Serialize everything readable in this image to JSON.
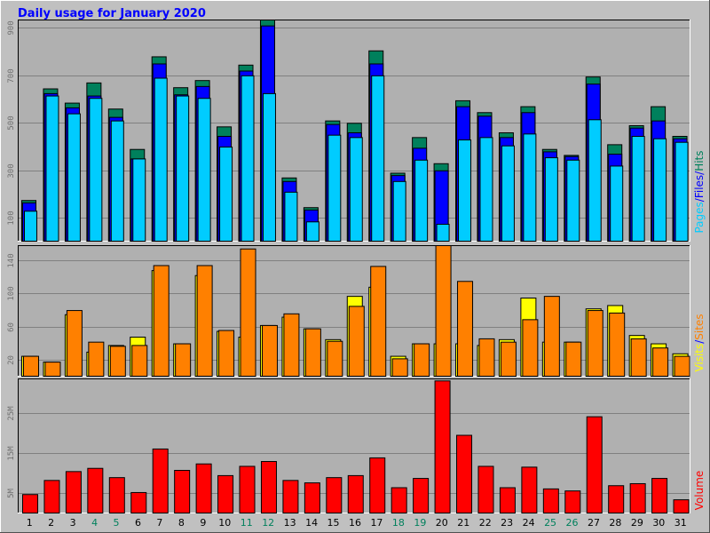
{
  "colors": {
    "background": "#c0c0c0",
    "plot_background": "#b0b0b0",
    "hits": "#00ccff",
    "files": "#0000ff",
    "pages": "#00805c",
    "visits": "#ffff00",
    "sites": "#ff8000",
    "volume": "#ff0000",
    "weekday_label": "#000000",
    "weekend_label": "#00805c",
    "separator": "#0000ff"
  },
  "chart_data": {
    "type": "bar",
    "title": "Daily usage for January 2020",
    "categories": [
      "1",
      "2",
      "3",
      "4",
      "5",
      "6",
      "7",
      "8",
      "9",
      "10",
      "11",
      "12",
      "13",
      "14",
      "15",
      "16",
      "17",
      "18",
      "19",
      "20",
      "21",
      "22",
      "23",
      "24",
      "25",
      "26",
      "27",
      "28",
      "29",
      "30",
      "31"
    ],
    "weekend_days": [
      "4",
      "5",
      "11",
      "12",
      "18",
      "19",
      "25",
      "26"
    ],
    "panels": [
      {
        "id": "top",
        "legend": [
          "Pages",
          "Files",
          "Hits"
        ],
        "ticks": [
          "100",
          "300",
          "500",
          "700",
          "900"
        ],
        "tick_values": [
          100,
          300,
          500,
          700,
          900
        ],
        "ylim": [
          0,
          935
        ],
        "series": [
          {
            "name": "Pages",
            "values": [
              175,
              645,
              585,
              670,
              560,
              390,
              780,
              650,
              680,
              485,
              745,
              935,
              270,
              145,
              510,
              500,
              805,
              290,
              440,
              330,
              595,
              545,
              460,
              570,
              390,
              365,
              695,
              410,
              490,
              570,
              445
            ]
          },
          {
            "name": "Files",
            "values": [
              165,
              625,
              565,
              615,
              525,
              350,
              750,
              620,
              655,
              445,
              720,
              910,
              255,
              135,
              495,
              460,
              750,
              280,
              395,
              300,
              570,
              530,
              440,
              545,
              380,
              360,
              665,
              370,
              480,
              510,
              435
            ]
          },
          {
            "name": "Hits",
            "values": [
              130,
              615,
              540,
              605,
              510,
              350,
              690,
              615,
              605,
              400,
              700,
              625,
              210,
              85,
              450,
              440,
              700,
              255,
              345,
              75,
              430,
              440,
              405,
              455,
              355,
              345,
              515,
              320,
              445,
              435,
              420
            ]
          }
        ]
      },
      {
        "id": "middle",
        "legend": [
          "Visits",
          "Sites"
        ],
        "ticks": [
          "20",
          "60",
          "100",
          "140"
        ],
        "tick_values": [
          20,
          60,
          100,
          140
        ],
        "ylim": [
          0,
          158
        ],
        "series": [
          {
            "name": "Visits",
            "values": [
              25,
              18,
              75,
              30,
              38,
              48,
              128,
              40,
              122,
              55,
              48,
              62,
              72,
              58,
              45,
              97,
              108,
              25,
              40,
              40,
              40,
              38,
              45,
              95,
              42,
              42,
              82,
              86,
              50,
              40,
              28
            ]
          },
          {
            "name": "Sites",
            "values": [
              25,
              18,
              80,
              42,
              37,
              38,
              134,
              40,
              134,
              56,
              154,
              62,
              76,
              58,
              43,
              85,
              133,
              22,
              40,
              158,
              115,
              46,
              42,
              69,
              97,
              42,
              80,
              77,
              46,
              35,
              25
            ]
          }
        ]
      },
      {
        "id": "bottom",
        "legend": [
          "Volume"
        ],
        "ticks": [
          "5M",
          "15M",
          "25M"
        ],
        "tick_values": [
          5,
          15,
          25
        ],
        "ylim": [
          0,
          33.5
        ],
        "unit": "MB",
        "series": [
          {
            "name": "Volume",
            "values": [
              4.8,
              8.3,
              10.5,
              11.3,
              9.0,
              5.3,
              16.1,
              10.8,
              12.4,
              9.5,
              11.8,
              13.0,
              8.3,
              7.7,
              9.0,
              9.5,
              13.9,
              6.5,
              8.8,
              33.0,
              19.5,
              11.8,
              6.5,
              11.6,
              6.2,
              5.7,
              24.1,
              7.0,
              7.5,
              8.8,
              3.5
            ]
          }
        ]
      }
    ]
  }
}
